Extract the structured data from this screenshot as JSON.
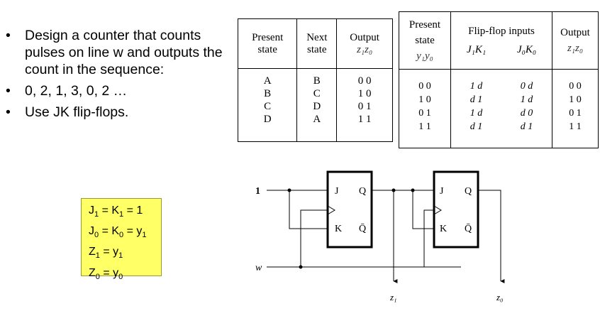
{
  "bullets": [
    "Design a counter that counts pulses on line w and outputs the count in the sequence:",
    "0, 2, 1, 3, 0, 2 …",
    "Use JK flip-flops."
  ],
  "bullet_symbol": "•",
  "state_table": {
    "headers": [
      [
        "Present",
        "state"
      ],
      [
        "Next",
        "state"
      ],
      [
        "Output",
        "z₁z₀"
      ]
    ],
    "present": [
      "A",
      "B",
      "C",
      "D"
    ],
    "next": [
      "B",
      "C",
      "D",
      "A"
    ],
    "output": [
      "0 0",
      "1 0",
      "0 1",
      "1 1"
    ]
  },
  "excitation_table": {
    "header_present": [
      "Present",
      "state",
      "y₁y₀"
    ],
    "header_ff": "Flip-flop inputs",
    "header_j1k1": "J₁K₁",
    "header_j0k0": "J₀K₀",
    "header_output": [
      "Output",
      "z₁z₀"
    ],
    "present": [
      "0 0",
      "1 0",
      "0 1",
      "1 1"
    ],
    "j1k1": [
      "1 d",
      "d 1",
      "1 d",
      "d 1"
    ],
    "j0k0": [
      "0 d",
      "1 d",
      "d 0",
      "d 1"
    ],
    "output": [
      "0 0",
      "1 0",
      "0 1",
      "1 1"
    ]
  },
  "equations": {
    "l1_a": "J",
    "l1_a_sub": "1",
    "l1_b": " = K",
    "l1_b_sub": "1",
    "l1_c": " = 1",
    "l2_a": "J",
    "l2_a_sub": "0",
    "l2_b": " = K",
    "l2_b_sub": "0",
    "l2_c": " = y",
    "l2_c_sub": "1",
    "l3_a": "Z",
    "l3_a_sub": "1",
    "l3_b": " = y",
    "l3_b_sub": "1",
    "l4_a": "Z",
    "l4_a_sub": "0",
    "l4_b": " = y",
    "l4_b_sub": "0"
  },
  "circuit": {
    "input_one": "1",
    "input_w": "w",
    "ff1": {
      "j": "J",
      "k": "K",
      "q": "Q",
      "qbar": "Q̄"
    },
    "ff2": {
      "j": "J",
      "k": "K",
      "q": "Q",
      "qbar": "Q̄"
    },
    "out_z1": "z₁",
    "out_z0": "z₀"
  }
}
